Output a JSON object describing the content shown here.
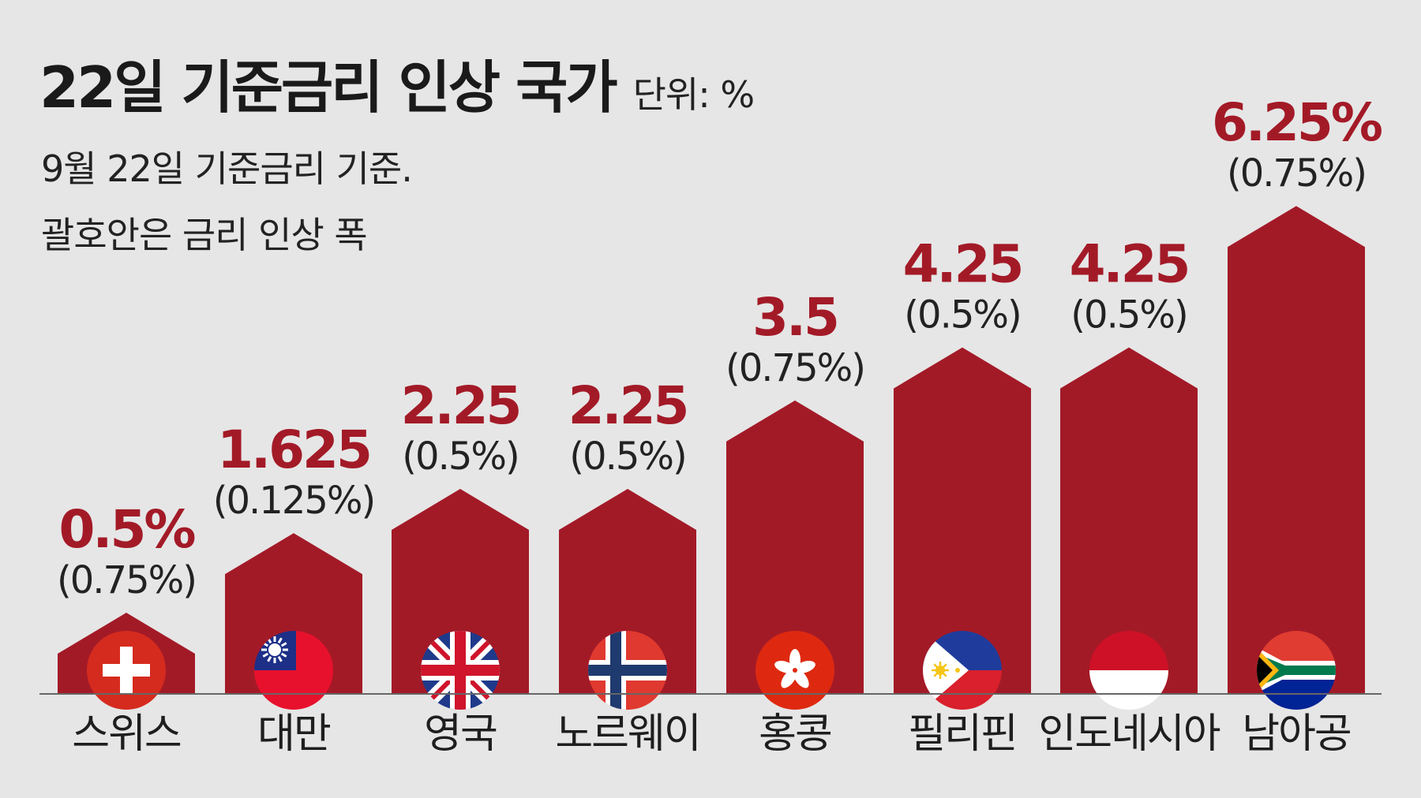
{
  "chart_data": {
    "type": "bar",
    "title": "22일 기준금리 인상 국가",
    "unit_label": "단위: %",
    "subtitle_lines": [
      "9월 22일 기준금리 기준.",
      "괄호안은 금리 인상 폭"
    ],
    "categories": [
      "스위스",
      "대만",
      "영국",
      "노르웨이",
      "홍콩",
      "필리핀",
      "인도네시아",
      "남아공"
    ],
    "values": [
      0.5,
      1.625,
      2.25,
      2.25,
      3.5,
      4.25,
      4.25,
      6.25
    ],
    "value_labels": [
      "0.5%",
      "1.625",
      "2.25",
      "2.25",
      "3.5",
      "4.25",
      "4.25",
      "6.25%"
    ],
    "increase_labels": [
      "(0.75%)",
      "(0.125%)",
      "(0.5%)",
      "(0.5%)",
      "(0.75%)",
      "(0.5%)",
      "(0.5%)",
      "(0.75%)"
    ],
    "flag_icons": [
      "switzerland-flag-icon",
      "taiwan-flag-icon",
      "uk-flag-icon",
      "norway-flag-icon",
      "hongkong-flag-icon",
      "philippines-flag-icon",
      "indonesia-flag-icon",
      "south-africa-flag-icon"
    ],
    "bar_color": "#a31a27",
    "value_color": "#a31a27",
    "background": "#e6e6e6",
    "legend": "none",
    "grid": false
  }
}
